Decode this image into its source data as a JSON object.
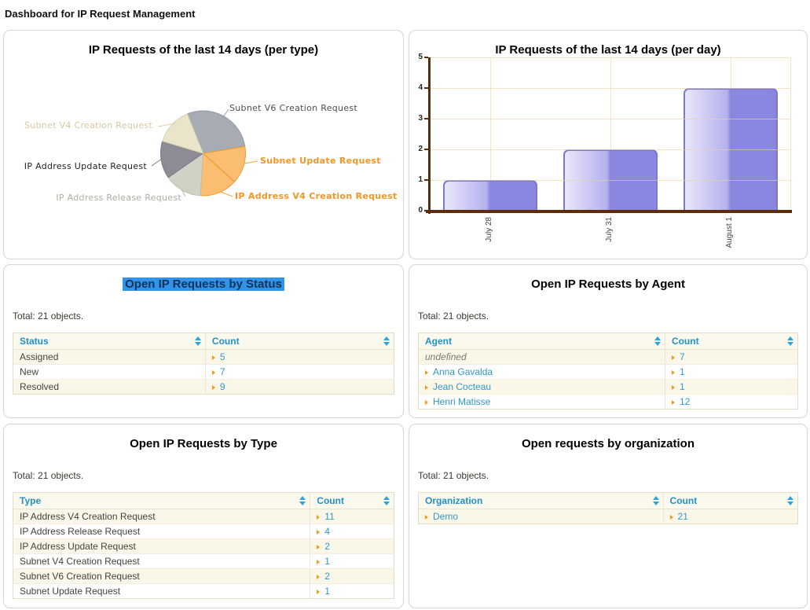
{
  "page_title": "Dashboard for IP Request Management",
  "colors": {
    "link_blue": "#2f99cf",
    "header_blue": "#2191c6",
    "sort_icon_blue": "#2aa5dc",
    "arrow_orange": "#f39a1c",
    "selection_bg": "#3294e9",
    "selection_text": "#0e3357",
    "axis_brown": "#5d2c0d",
    "grid_tan": "#f3e6c4"
  },
  "chart_data": [
    {
      "type": "pie",
      "title": "IP Requests of the last 14 days (per type)",
      "total": 7,
      "start_angle_deg": 112,
      "clockwise": true,
      "slices": [
        {
          "label": "Subnet V6 Creation Request",
          "value": 2,
          "color": "#a7acb4",
          "border": "#939aa4",
          "label_color": "#4f4f4f",
          "leader_color": "#a0a0a0",
          "label_bold": false
        },
        {
          "label": "Subnet Update Request",
          "value": 1,
          "color": "#fabd72",
          "border": "#f29a27",
          "label_color": "#f5941f",
          "leader_color": "#f5a43c",
          "label_bold": true
        },
        {
          "label": "IP Address V4 Creation Request",
          "value": 1,
          "color": "#fabd72",
          "border": "#f29a27",
          "label_color": "#f5941f",
          "leader_color": "#f5a43c",
          "label_bold": true
        },
        {
          "label": "IP Address Release Request",
          "value": 1,
          "color": "#ced3c5",
          "border": "#bcc2b2",
          "label_color": "#abb09f",
          "leader_color": "#b6bba9",
          "label_bold": false
        },
        {
          "label": "IP Address Update Request",
          "value": 1,
          "color": "#8e8b97",
          "border": "#7b7885",
          "label_color": "#222222",
          "leader_color": "#7a7a7a",
          "label_bold": false
        },
        {
          "label": "Subnet V4 Creation Request",
          "value": 1,
          "color": "#eae5ca",
          "border": "#d9d3b0",
          "label_color": "#d4cb9b",
          "leader_color": "#d8d0a5",
          "label_bold": false
        }
      ]
    },
    {
      "type": "bar",
      "title": "IP Requests of the last 14 days (per day)",
      "categories": [
        "July 28",
        "July 31",
        "August 1"
      ],
      "values": [
        1,
        2,
        4
      ],
      "ylim": [
        0,
        5
      ],
      "yticks": [
        0,
        1,
        2,
        3,
        4,
        5
      ],
      "grid": true,
      "bar_gradient_light": "#e9e7fa",
      "bar_gradient_dark": "#8a87e1",
      "bar_border": "#7b78d2"
    }
  ],
  "panels": {
    "status": {
      "title": "Open IP Requests by Status",
      "title_selected": true,
      "total_label": "Total: 21 objects.",
      "columns": [
        "Status",
        "Count"
      ],
      "rows": [
        {
          "label": "Assigned",
          "count": "5"
        },
        {
          "label": "New",
          "count": "7"
        },
        {
          "label": "Resolved",
          "count": "9"
        }
      ]
    },
    "agent": {
      "title": "Open IP Requests by Agent",
      "title_selected": false,
      "total_label": "Total: 21 objects.",
      "columns": [
        "Agent",
        "Count"
      ],
      "rows": [
        {
          "label": "undefined",
          "style": "undefined",
          "count": "7"
        },
        {
          "label": "Anna Gavalda",
          "link": true,
          "count": "1"
        },
        {
          "label": "Jean Cocteau",
          "link": true,
          "count": "1"
        },
        {
          "label": "Henri Matisse",
          "link": true,
          "count": "12"
        }
      ]
    },
    "type": {
      "title": "Open IP Requests by Type",
      "title_selected": false,
      "total_label": "Total: 21 objects.",
      "columns": [
        "Type",
        "Count"
      ],
      "rows": [
        {
          "label": "IP Address V4 Creation Request",
          "count": "11"
        },
        {
          "label": "IP Address Release Request",
          "count": "4"
        },
        {
          "label": "IP Address Update Request",
          "count": "2"
        },
        {
          "label": "Subnet V4 Creation Request",
          "count": "1"
        },
        {
          "label": "Subnet V6 Creation Request",
          "count": "2"
        },
        {
          "label": "Subnet Update Request",
          "count": "1"
        }
      ]
    },
    "org": {
      "title": "Open requests by organization",
      "title_selected": false,
      "total_label": "Total: 21 objects.",
      "columns": [
        "Organization",
        "Count"
      ],
      "rows": [
        {
          "label": "Demo",
          "link": true,
          "count": "21"
        }
      ]
    }
  }
}
